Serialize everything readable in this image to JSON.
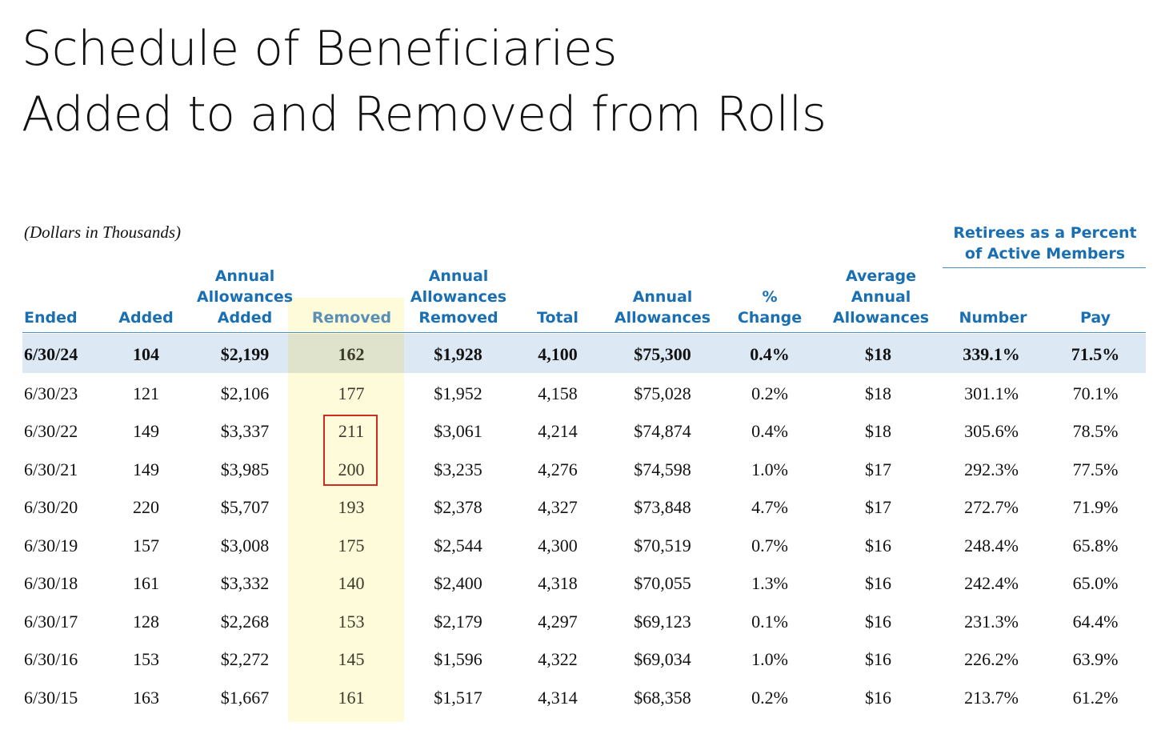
{
  "title": {
    "line1": "Schedule of Beneficiaries",
    "line2": "Added to and Removed from Rolls"
  },
  "caption": "(Dollars in Thousands)",
  "group_header": {
    "line1": "Retirees as a Percent",
    "line2": "of Active Members"
  },
  "headers": {
    "ended": "Ended",
    "added": "Added",
    "annual_allowances_added": [
      "Annual",
      "Allowances",
      "Added"
    ],
    "removed": "Removed",
    "annual_allowances_removed": [
      "Annual",
      "Allowances",
      "Removed"
    ],
    "total": "Total",
    "annual_allowances": [
      "Annual",
      "Allowances"
    ],
    "pct_change": [
      "%",
      "Change"
    ],
    "average_annual_allowances": [
      "Average",
      "Annual",
      "Allowances"
    ],
    "number": "Number",
    "pay": "Pay"
  },
  "rows": [
    [
      "6/30/24",
      "104",
      "$2,199",
      "162",
      "$1,928",
      "4,100",
      "$75,300",
      "0.4%",
      "$18",
      "339.1%",
      "71.5%"
    ],
    [
      "6/30/23",
      "121",
      "$2,106",
      "177",
      "$1,952",
      "4,158",
      "$75,028",
      "0.2%",
      "$18",
      "301.1%",
      "70.1%"
    ],
    [
      "6/30/22",
      "149",
      "$3,337",
      "211",
      "$3,061",
      "4,214",
      "$74,874",
      "0.4%",
      "$18",
      "305.6%",
      "78.5%"
    ],
    [
      "6/30/21",
      "149",
      "$3,985",
      "200",
      "$3,235",
      "4,276",
      "$74,598",
      "1.0%",
      "$17",
      "292.3%",
      "77.5%"
    ],
    [
      "6/30/20",
      "220",
      "$5,707",
      "193",
      "$2,378",
      "4,327",
      "$73,848",
      "4.7%",
      "$17",
      "272.7%",
      "71.9%"
    ],
    [
      "6/30/19",
      "157",
      "$3,008",
      "175",
      "$2,544",
      "4,300",
      "$70,519",
      "0.7%",
      "$16",
      "248.4%",
      "65.8%"
    ],
    [
      "6/30/18",
      "161",
      "$3,332",
      "140",
      "$2,400",
      "4,318",
      "$70,055",
      "1.3%",
      "$16",
      "242.4%",
      "65.0%"
    ],
    [
      "6/30/17",
      "128",
      "$2,268",
      "153",
      "$2,179",
      "4,297",
      "$69,123",
      "0.1%",
      "$16",
      "231.3%",
      "64.4%"
    ],
    [
      "6/30/16",
      "153",
      "$2,272",
      "145",
      "$1,596",
      "4,322",
      "$69,034",
      "1.0%",
      "$16",
      "226.2%",
      "63.9%"
    ],
    [
      "6/30/15",
      "163",
      "$1,667",
      "161",
      "$1,517",
      "4,314",
      "$68,358",
      "0.2%",
      "$16",
      "213.7%",
      "61.2%"
    ]
  ],
  "colors": {
    "header_blue": "#1a6fb3",
    "removed_band": "#fdfbd9",
    "highlight_row": "#dde8f5",
    "callout_red": "#d12b1f"
  }
}
